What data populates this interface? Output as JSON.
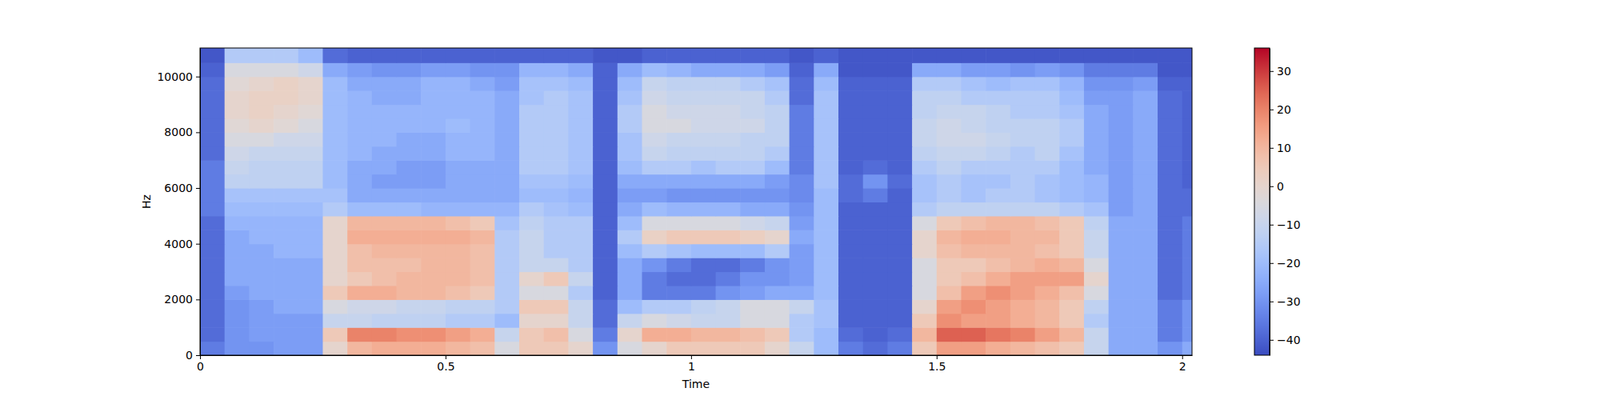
{
  "chart_data": {
    "type": "heatmap",
    "xlabel": "Time",
    "ylabel": "Hz",
    "xlim": [
      0,
      2.02
    ],
    "ylim": [
      0,
      11025
    ],
    "xticks": [
      0,
      0.5,
      1,
      1.5,
      2
    ],
    "yticks": [
      0,
      2000,
      4000,
      6000,
      8000,
      10000
    ],
    "x_bins": [
      0,
      0.05,
      0.1,
      0.15,
      0.2,
      0.25,
      0.3,
      0.35,
      0.4,
      0.45,
      0.5,
      0.55,
      0.6,
      0.65,
      0.7,
      0.75,
      0.8,
      0.85,
      0.9,
      0.95,
      1,
      1.05,
      1.1,
      1.15,
      1.2,
      1.25,
      1.3,
      1.35,
      1.4,
      1.45,
      1.5,
      1.55,
      1.6,
      1.65,
      1.7,
      1.75,
      1.8,
      1.85,
      1.9,
      1.95,
      2,
      2.05
    ],
    "y_bins": [
      0,
      500,
      1000,
      1500,
      2000,
      2500,
      3000,
      3500,
      4000,
      4500,
      5000,
      5500,
      6000,
      6500,
      7000,
      7500,
      8000,
      8500,
      9000,
      9500,
      10000,
      10500,
      11025
    ],
    "values": [
      [
        -35,
        -30,
        -30,
        -28,
        -28,
        0,
        10,
        12,
        12,
        12,
        10,
        8,
        -5,
        5,
        5,
        0,
        -30,
        -5,
        0,
        5,
        5,
        5,
        5,
        0,
        -10,
        -20,
        -35,
        -38,
        -35,
        5,
        15,
        15,
        12,
        10,
        8,
        5,
        -10,
        -25,
        -25,
        -30,
        -25
      ],
      [
        -38,
        -30,
        -28,
        -28,
        -28,
        5,
        20,
        20,
        18,
        18,
        15,
        12,
        -10,
        5,
        8,
        -5,
        -35,
        0,
        12,
        12,
        10,
        10,
        8,
        5,
        -15,
        -20,
        -38,
        -40,
        -38,
        10,
        25,
        25,
        22,
        20,
        15,
        10,
        -10,
        -25,
        -25,
        -35,
        -30
      ],
      [
        -38,
        -30,
        -28,
        -28,
        -28,
        -10,
        -10,
        -12,
        -12,
        -12,
        -15,
        -15,
        -20,
        0,
        0,
        -10,
        -38,
        -10,
        -5,
        -8,
        -10,
        -10,
        -5,
        -5,
        -15,
        -18,
        -40,
        -40,
        -40,
        5,
        18,
        15,
        15,
        12,
        10,
        5,
        -15,
        -25,
        -25,
        -35,
        -30
      ],
      [
        -38,
        -30,
        -28,
        -25,
        -25,
        -5,
        -8,
        -8,
        -10,
        -10,
        -12,
        -12,
        -15,
        5,
        5,
        -10,
        -38,
        -20,
        -15,
        -15,
        -12,
        -10,
        -5,
        -5,
        -10,
        -18,
        -40,
        -40,
        -40,
        0,
        15,
        18,
        15,
        12,
        10,
        5,
        -12,
        -25,
        -25,
        -35,
        -30
      ],
      [
        -38,
        -28,
        -25,
        -25,
        -25,
        5,
        12,
        12,
        10,
        10,
        8,
        5,
        -15,
        -5,
        -5,
        -15,
        -40,
        -25,
        -35,
        -35,
        -35,
        -30,
        -28,
        -25,
        -25,
        -20,
        -40,
        -40,
        -40,
        -5,
        8,
        15,
        18,
        15,
        12,
        8,
        -5,
        -25,
        -25,
        -38,
        -35
      ],
      [
        -38,
        -25,
        -25,
        -25,
        -25,
        0,
        5,
        8,
        10,
        10,
        10,
        8,
        -15,
        0,
        5,
        -10,
        -40,
        -25,
        -35,
        -38,
        -38,
        -35,
        -30,
        -30,
        -28,
        -20,
        -40,
        -40,
        -40,
        -5,
        5,
        8,
        12,
        15,
        15,
        15,
        0,
        -25,
        -25,
        -38,
        -35
      ],
      [
        -38,
        -25,
        -25,
        -25,
        -25,
        0,
        8,
        8,
        8,
        10,
        10,
        8,
        -15,
        -10,
        -10,
        -15,
        -40,
        -25,
        -30,
        -35,
        -38,
        -38,
        -35,
        -30,
        -28,
        -20,
        -40,
        -40,
        -40,
        -5,
        5,
        5,
        8,
        10,
        12,
        10,
        -5,
        -25,
        -25,
        -38,
        -35
      ],
      [
        -38,
        -25,
        -25,
        -22,
        -22,
        0,
        8,
        10,
        10,
        10,
        10,
        8,
        -15,
        -10,
        -15,
        -15,
        -40,
        -20,
        -15,
        -18,
        -20,
        -20,
        -20,
        -15,
        -28,
        -20,
        -40,
        -40,
        -40,
        0,
        8,
        10,
        10,
        10,
        8,
        5,
        -10,
        -25,
        -25,
        -38,
        -35
      ],
      [
        -38,
        -25,
        -22,
        -22,
        -22,
        0,
        12,
        12,
        12,
        12,
        12,
        10,
        -15,
        -10,
        -15,
        -15,
        -40,
        -15,
        2,
        5,
        5,
        5,
        3,
        0,
        -25,
        -20,
        -40,
        -40,
        -40,
        0,
        10,
        12,
        12,
        10,
        10,
        5,
        -10,
        -25,
        -25,
        -38,
        -35
      ],
      [
        -38,
        -22,
        -22,
        -22,
        -22,
        0,
        10,
        10,
        10,
        10,
        8,
        5,
        -18,
        -12,
        -15,
        -15,
        -40,
        -20,
        -5,
        -5,
        -5,
        -5,
        -8,
        -10,
        -28,
        -20,
        -40,
        -40,
        -40,
        -5,
        5,
        8,
        10,
        10,
        8,
        5,
        -12,
        -25,
        -25,
        -38,
        -35
      ],
      [
        -35,
        -20,
        -20,
        -20,
        -20,
        -15,
        -20,
        -20,
        -20,
        -22,
        -22,
        -22,
        -22,
        -15,
        -18,
        -20,
        -40,
        -25,
        -20,
        -22,
        -22,
        -22,
        -25,
        -25,
        -30,
        -20,
        -40,
        -40,
        -40,
        -15,
        -12,
        -12,
        -12,
        -12,
        -12,
        -15,
        -18,
        -28,
        -25,
        -38,
        -38
      ],
      [
        -35,
        -18,
        -18,
        -18,
        -18,
        -18,
        -25,
        -25,
        -25,
        -25,
        -25,
        -25,
        -25,
        -20,
        -20,
        -22,
        -40,
        -28,
        -28,
        -30,
        -30,
        -30,
        -30,
        -30,
        -32,
        -20,
        -38,
        -35,
        -40,
        -18,
        -15,
        -18,
        -15,
        -15,
        -18,
        -20,
        -22,
        -28,
        -25,
        -38,
        -38
      ],
      [
        -35,
        -12,
        -12,
        -12,
        -12,
        -20,
        -25,
        -28,
        -28,
        -28,
        -25,
        -25,
        -25,
        -18,
        -18,
        -20,
        -40,
        -25,
        -25,
        -25,
        -25,
        -25,
        -25,
        -28,
        -32,
        -18,
        -38,
        -30,
        -38,
        -18,
        -15,
        -18,
        -18,
        -15,
        -18,
        -20,
        -22,
        -28,
        -25,
        -38,
        -40
      ],
      [
        -35,
        -10,
        -12,
        -12,
        -12,
        -20,
        -25,
        -25,
        -28,
        -28,
        -25,
        -25,
        -25,
        -15,
        -15,
        -18,
        -40,
        -20,
        -15,
        -15,
        -18,
        -15,
        -15,
        -20,
        -35,
        -18,
        -40,
        -38,
        -40,
        -15,
        -12,
        -15,
        -15,
        -15,
        -15,
        -20,
        -25,
        -28,
        -25,
        -38,
        -40
      ],
      [
        -38,
        -8,
        -10,
        -10,
        -10,
        -20,
        -22,
        -25,
        -25,
        -25,
        -22,
        -22,
        -25,
        -15,
        -15,
        -18,
        -40,
        -18,
        -10,
        -12,
        -12,
        -12,
        -12,
        -15,
        -35,
        -18,
        -40,
        -40,
        -40,
        -12,
        -10,
        -10,
        -12,
        -15,
        -12,
        -18,
        -25,
        -28,
        -25,
        -38,
        -40
      ],
      [
        -38,
        -5,
        -5,
        -8,
        -8,
        -20,
        -22,
        -22,
        -25,
        -25,
        -22,
        -22,
        -25,
        -15,
        -15,
        -18,
        -40,
        -18,
        -8,
        -10,
        -10,
        -10,
        -12,
        -12,
        -35,
        -18,
        -40,
        -40,
        -40,
        -10,
        -8,
        -8,
        -10,
        -12,
        -12,
        -15,
        -25,
        -28,
        -25,
        -38,
        -40
      ],
      [
        -38,
        -2,
        0,
        -2,
        -5,
        -20,
        -22,
        -22,
        -22,
        -22,
        -20,
        -22,
        -25,
        -15,
        -15,
        -18,
        -40,
        -15,
        -5,
        -5,
        -8,
        -8,
        -8,
        -12,
        -35,
        -18,
        -40,
        -40,
        -40,
        -10,
        -8,
        -10,
        -12,
        -12,
        -12,
        -15,
        -25,
        -28,
        -25,
        -38,
        -40
      ],
      [
        -38,
        0,
        2,
        0,
        -2,
        -20,
        -22,
        -22,
        -22,
        -22,
        -22,
        -22,
        -25,
        -15,
        -15,
        -18,
        -40,
        -15,
        -5,
        -8,
        -8,
        -8,
        -10,
        -12,
        -35,
        -18,
        -40,
        -40,
        -40,
        -12,
        -10,
        -10,
        -12,
        -15,
        -15,
        -18,
        -25,
        -28,
        -25,
        -38,
        -40
      ],
      [
        -38,
        0,
        2,
        2,
        0,
        -20,
        -22,
        -25,
        -25,
        -22,
        -22,
        -22,
        -25,
        -18,
        -15,
        -18,
        -40,
        -18,
        -8,
        -10,
        -10,
        -10,
        -10,
        -15,
        -38,
        -18,
        -40,
        -40,
        -40,
        -12,
        -12,
        -15,
        -15,
        -15,
        -15,
        -20,
        -28,
        -28,
        -25,
        -38,
        -40
      ],
      [
        -38,
        -2,
        0,
        2,
        0,
        -20,
        -25,
        -25,
        -25,
        -22,
        -22,
        -25,
        -28,
        -18,
        -18,
        -20,
        -40,
        -20,
        -10,
        -12,
        -12,
        -12,
        -15,
        -18,
        -38,
        -20,
        -40,
        -40,
        -40,
        -15,
        -15,
        -18,
        -20,
        -18,
        -18,
        -22,
        -30,
        -30,
        -28,
        -40,
        -40
      ],
      [
        -40,
        -5,
        -5,
        -5,
        -8,
        -25,
        -28,
        -30,
        -30,
        -28,
        -28,
        -30,
        -30,
        -22,
        -22,
        -25,
        -40,
        -25,
        -20,
        -22,
        -25,
        -25,
        -25,
        -28,
        -40,
        -25,
        -42,
        -42,
        -42,
        -25,
        -25,
        -28,
        -28,
        -30,
        -28,
        -30,
        -35,
        -35,
        -35,
        -42,
        -42
      ],
      [
        -42,
        -15,
        -15,
        -15,
        -20,
        -38,
        -40,
        -40,
        -40,
        -40,
        -40,
        -40,
        -40,
        -40,
        -40,
        -40,
        -42,
        -42,
        -40,
        -40,
        -40,
        -40,
        -40,
        -40,
        -42,
        -40,
        -42,
        -42,
        -42,
        -42,
        -42,
        -42,
        -42,
        -42,
        -42,
        -42,
        -42,
        -42,
        -42,
        -42,
        -42
      ]
    ],
    "colorbar_range": [
      -44,
      36
    ],
    "colorbar_ticks": [
      {
        "value": -40,
        "label": "−40"
      },
      {
        "value": -30,
        "label": "−30"
      },
      {
        "value": -20,
        "label": "−20"
      },
      {
        "value": -10,
        "label": "−10"
      },
      0,
      10,
      20,
      30
    ]
  }
}
